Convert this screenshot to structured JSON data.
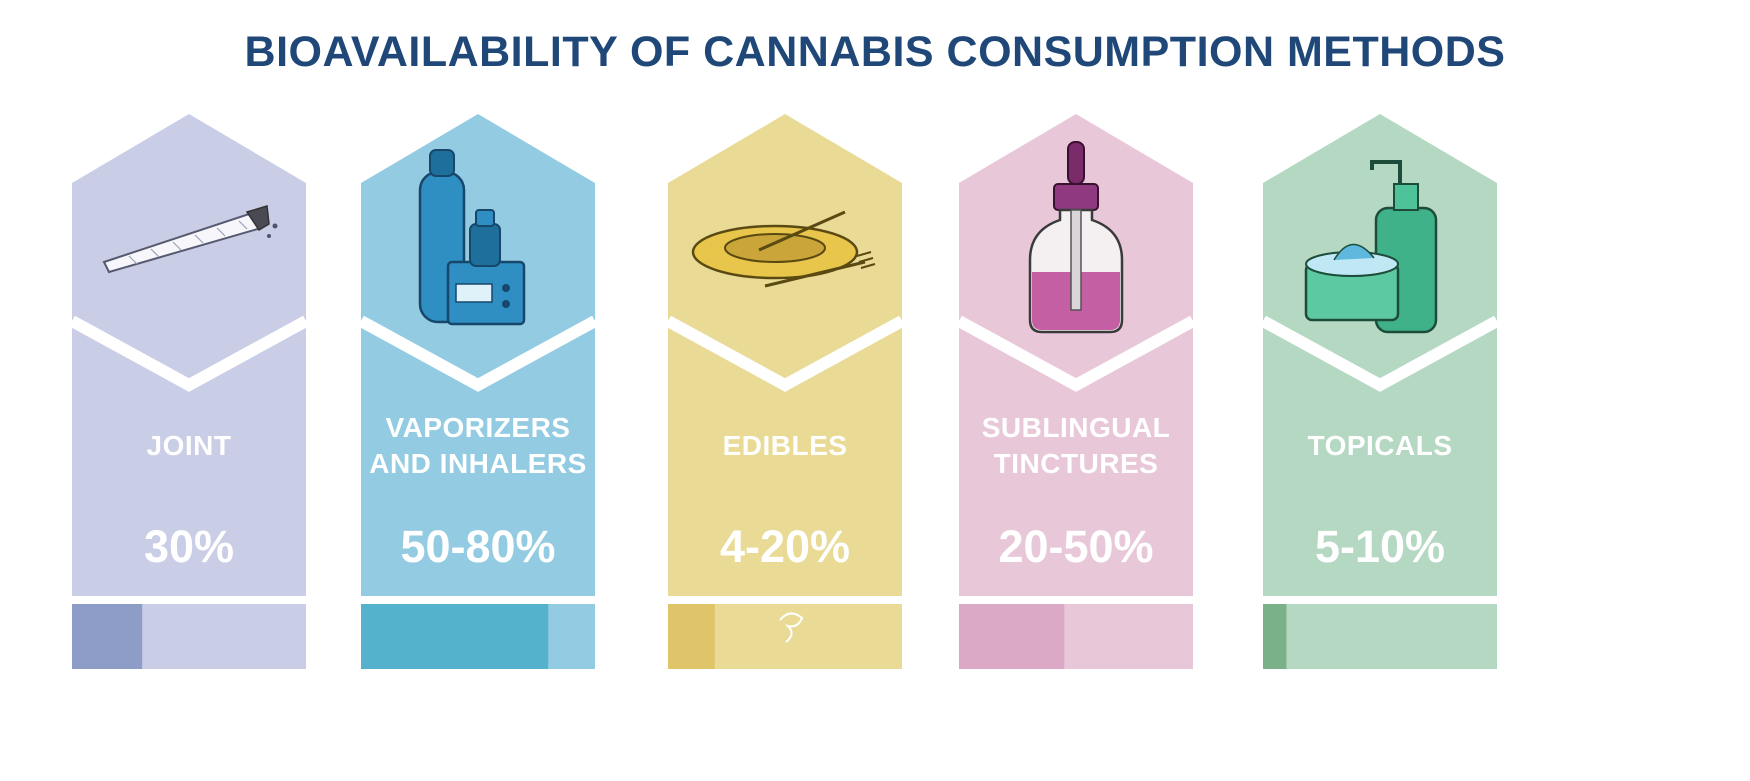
{
  "chart_data": {
    "type": "bar",
    "title": "BIOAVAILABILITY OF CANNABIS CONSUMPTION METHODS",
    "categories": [
      "JOINT",
      "VAPORIZERS AND INHALERS",
      "EDIBLES",
      "SUBLINGUAL TINCTURES",
      "TOPICALS"
    ],
    "category_lines": [
      [
        "JOINT"
      ],
      [
        "VAPORIZERS",
        "AND INHALERS"
      ],
      [
        "EDIBLES"
      ],
      [
        "SUBLINGUAL",
        "TINCTURES"
      ],
      [
        "TOPICALS"
      ]
    ],
    "value_labels": [
      "30%",
      "50-80%",
      "4-20%",
      "20-50%",
      "5-10%"
    ],
    "values": [
      30,
      80,
      20,
      45,
      10
    ],
    "ranges": [
      [
        30,
        30
      ],
      [
        50,
        80
      ],
      [
        4,
        20
      ],
      [
        20,
        50
      ],
      [
        5,
        10
      ]
    ],
    "ylim": [
      0,
      100
    ],
    "icons": [
      "joint-icon",
      "vaporizer-icon",
      "edible-bowl-icon",
      "tincture-dropper-icon",
      "topical-cream-icon"
    ],
    "colors": {
      "panel": [
        "#c9cde6",
        "#93cce2",
        "#e9db96",
        "#e8c8d8",
        "#b5d8c3"
      ],
      "bar": [
        "#8e9cc8",
        "#55b2cc",
        "#dfc46a",
        "#dba8c6",
        "#7bb189"
      ],
      "title": "#1f4778"
    }
  }
}
